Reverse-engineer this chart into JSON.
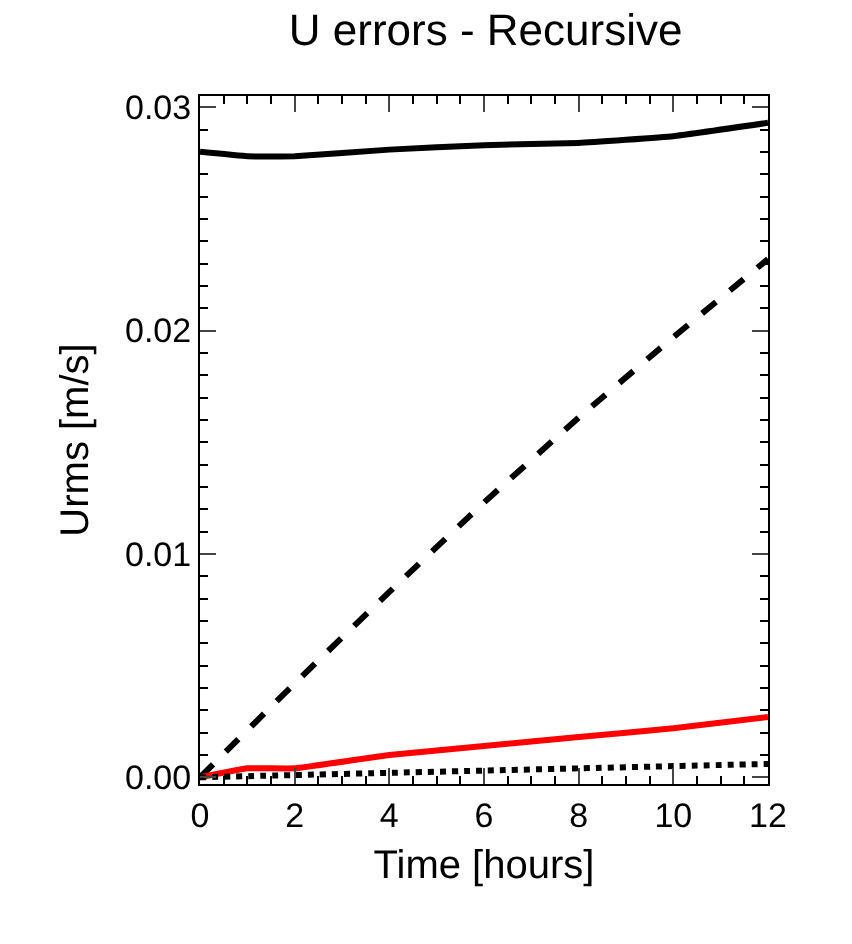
{
  "chart_data": {
    "type": "line",
    "title": "U errors - Recursive",
    "xlabel": "Time [hours]",
    "ylabel": "Urms [m/s]",
    "xlim": [
      0,
      12
    ],
    "xticks": [
      0,
      2,
      4,
      6,
      8,
      10,
      12
    ],
    "ylim": [
      -0.0003,
      0.0305
    ],
    "yticks": [
      {
        "value": 0,
        "label": "0.00"
      },
      {
        "value": 0.01,
        "label": "0.01"
      },
      {
        "value": 0.02,
        "label": "0.02"
      },
      {
        "value": 0.03,
        "label": "0.03"
      }
    ],
    "grid": false,
    "series": [
      {
        "color": "#000000",
        "line_style": "solid",
        "x": [
          0,
          1,
          2,
          4,
          6,
          8,
          10,
          12
        ],
        "values": [
          0.028,
          0.0278,
          0.0278,
          0.0281,
          0.0283,
          0.0284,
          0.0287,
          0.0293
        ]
      },
      {
        "color": "#000000",
        "line_style": "dashed",
        "x": [
          0,
          2,
          4,
          6,
          8,
          10,
          12
        ],
        "values": [
          0,
          0.0042,
          0.0083,
          0.0123,
          0.0161,
          0.0197,
          0.0232
        ]
      },
      {
        "color": "#ff0000",
        "line_style": "solid",
        "x": [
          0,
          1,
          2,
          4,
          6,
          8,
          10,
          12
        ],
        "values": [
          0,
          0.0004,
          0.0004,
          0.001,
          0.0014,
          0.0018,
          0.0022,
          0.0027
        ]
      },
      {
        "color": "#000000",
        "line_style": "dotted",
        "x": [
          0,
          2,
          4,
          6,
          8,
          10,
          12
        ],
        "values": [
          0,
          0.0001,
          0.0002,
          0.0003,
          0.0004,
          0.0005,
          0.0006
        ]
      }
    ]
  }
}
